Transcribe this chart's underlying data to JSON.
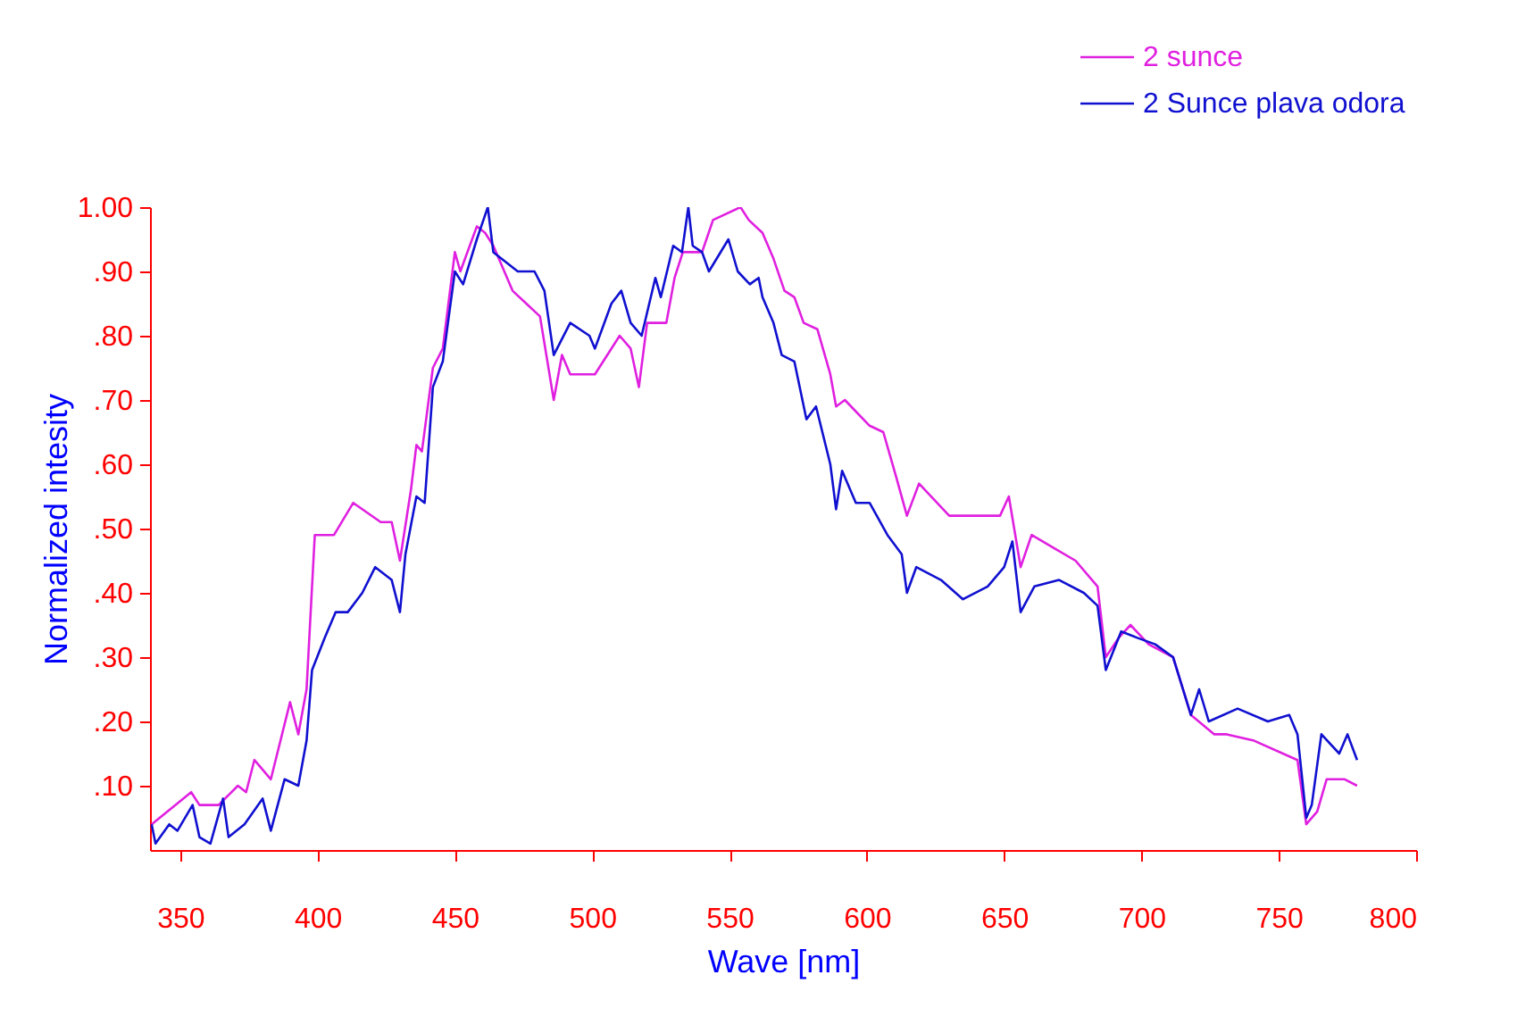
{
  "chart_data": {
    "type": "line",
    "xlabel": "Wave [nm]",
    "ylabel": "Normalized intesity",
    "xlim": [
      339,
      800
    ],
    "xticks": [
      350,
      400,
      450,
      500,
      550,
      600,
      650,
      700,
      750,
      800
    ],
    "ylim": [
      0,
      1
    ],
    "yticks": [
      {
        "value": 0.1,
        "label": ".10"
      },
      {
        "value": 0.2,
        "label": ".20"
      },
      {
        "value": 0.3,
        "label": ".30"
      },
      {
        "value": 0.4,
        "label": ".40"
      },
      {
        "value": 0.5,
        "label": ".50"
      },
      {
        "value": 0.6,
        "label": ".60"
      },
      {
        "value": 0.7,
        "label": ".70"
      },
      {
        "value": 0.8,
        "label": ".80"
      },
      {
        "value": 0.9,
        "label": ".90"
      },
      {
        "value": 1.0,
        "label": "1.00"
      }
    ],
    "legend": "top right",
    "line_style": "solid",
    "series": [
      {
        "name": "2 sunce",
        "color": "#e020e0",
        "x": [
          339.6,
          354,
          357,
          364,
          371,
          374,
          377,
          383,
          390,
          393,
          396,
          399,
          406,
          413,
          423,
          427,
          430,
          434,
          436,
          438,
          442,
          445.6,
          450,
          452,
          458,
          461,
          464,
          471,
          476,
          481,
          486,
          489,
          492,
          501,
          510,
          514,
          517,
          520,
          527,
          530,
          533,
          540,
          544,
          554,
          557,
          562,
          566,
          570,
          573.6,
          577,
          582,
          586.7,
          588.8,
          592,
          601,
          606,
          610.7,
          614.6,
          619,
          630,
          644,
          648.5,
          651.7,
          656,
          660,
          668,
          676,
          684,
          687,
          691.7,
          696,
          702.6,
          711.5,
          718,
          726.5,
          731,
          741,
          756.8,
          760,
          764,
          767.4,
          774,
          778.5
        ],
        "values": [
          0.04,
          0.09,
          0.07,
          0.07,
          0.1,
          0.09,
          0.14,
          0.11,
          0.23,
          0.18,
          0.25,
          0.49,
          0.49,
          0.54,
          0.51,
          0.51,
          0.45,
          0.56,
          0.63,
          0.62,
          0.75,
          0.78,
          0.93,
          0.9,
          0.97,
          0.96,
          0.94,
          0.87,
          0.85,
          0.83,
          0.7,
          0.77,
          0.74,
          0.74,
          0.8,
          0.78,
          0.72,
          0.82,
          0.82,
          0.89,
          0.93,
          0.93,
          0.98,
          1.0,
          0.98,
          0.96,
          0.92,
          0.87,
          0.86,
          0.82,
          0.81,
          0.74,
          0.69,
          0.7,
          0.66,
          0.65,
          0.58,
          0.52,
          0.57,
          0.52,
          0.52,
          0.52,
          0.55,
          0.44,
          0.49,
          0.47,
          0.45,
          0.41,
          0.3,
          0.33,
          0.35,
          0.32,
          0.3,
          0.21,
          0.18,
          0.18,
          0.17,
          0.14,
          0.04,
          0.06,
          0.11,
          0.11,
          0.1
        ]
      },
      {
        "name": "2 Sunce plava odora",
        "color": "#1010d0",
        "x": [
          339.6,
          341,
          346,
          349,
          354.5,
          357,
          361,
          365.6,
          367.6,
          373.4,
          380,
          383,
          388,
          393,
          396,
          398,
          402.6,
          406.6,
          411,
          416.3,
          421,
          427,
          430,
          432,
          436,
          439,
          442,
          445.6,
          450,
          453,
          458,
          462,
          464,
          472.9,
          479,
          482.6,
          486,
          492,
          499,
          501,
          507,
          510.6,
          514,
          518,
          523,
          525,
          529.5,
          532.7,
          535,
          536.6,
          540,
          542.5,
          549.6,
          553,
          557.4,
          560.6,
          562,
          566,
          569,
          573.6,
          578,
          581.5,
          586.7,
          588.8,
          591,
          596,
          601,
          607.5,
          612.7,
          614.6,
          618,
          627,
          635,
          644,
          650,
          653,
          656,
          661,
          670,
          679,
          684,
          687,
          692.6,
          698.5,
          705,
          711.5,
          718,
          721,
          724.5,
          735,
          746,
          753.8,
          756.8,
          760,
          762,
          765.5,
          772,
          775,
          778.5
        ],
        "values": [
          0.04,
          0.01,
          0.04,
          0.03,
          0.07,
          0.02,
          0.01,
          0.08,
          0.02,
          0.04,
          0.08,
          0.03,
          0.11,
          0.1,
          0.17,
          0.28,
          0.33,
          0.37,
          0.37,
          0.4,
          0.44,
          0.42,
          0.37,
          0.46,
          0.55,
          0.54,
          0.72,
          0.76,
          0.9,
          0.88,
          0.95,
          1.0,
          0.93,
          0.9,
          0.9,
          0.87,
          0.77,
          0.82,
          0.8,
          0.78,
          0.85,
          0.87,
          0.82,
          0.8,
          0.89,
          0.86,
          0.94,
          0.93,
          1.0,
          0.94,
          0.93,
          0.9,
          0.95,
          0.9,
          0.88,
          0.89,
          0.86,
          0.82,
          0.77,
          0.76,
          0.67,
          0.69,
          0.6,
          0.53,
          0.59,
          0.54,
          0.54,
          0.49,
          0.46,
          0.4,
          0.44,
          0.42,
          0.39,
          0.41,
          0.44,
          0.48,
          0.37,
          0.41,
          0.42,
          0.4,
          0.38,
          0.28,
          0.34,
          0.33,
          0.32,
          0.3,
          0.21,
          0.25,
          0.2,
          0.22,
          0.2,
          0.21,
          0.18,
          0.05,
          0.07,
          0.18,
          0.15,
          0.18,
          0.14
        ]
      }
    ]
  }
}
